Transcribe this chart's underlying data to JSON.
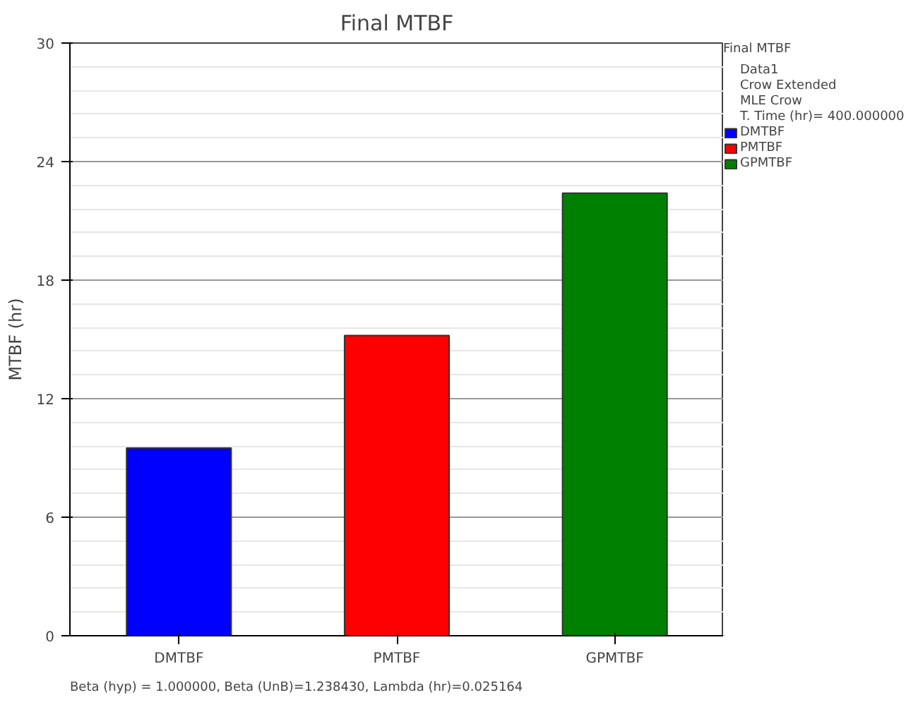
{
  "chart_data": {
    "type": "bar",
    "title": "Final MTBF",
    "ylabel": "MTBF (hr)",
    "categories": [
      "DMTBF",
      "PMTBF",
      "GPMTBF"
    ],
    "series": [
      {
        "name": "DMTBF",
        "color": "#0000ff",
        "values": [
          9.5,
          null,
          null
        ]
      },
      {
        "name": "PMTBF",
        "color": "#ff0000",
        "values": [
          null,
          15.2,
          null
        ]
      },
      {
        "name": "GPMTBF",
        "color": "#008000",
        "values": [
          null,
          null,
          22.4
        ]
      }
    ],
    "ylim": [
      0,
      30
    ],
    "yticks": [
      0,
      6,
      12,
      18,
      24,
      30
    ],
    "grid": "y",
    "legend": "top right",
    "legend_title": "Final MTBF",
    "annotations": [
      "Data1",
      "Crow Extended",
      "MLE Crow",
      "T. Time (hr)= 400.000000",
      "Beta (hyp) = 1.000000, Beta (UnB)=1.238430, Lambda (hr)=0.025164"
    ]
  }
}
